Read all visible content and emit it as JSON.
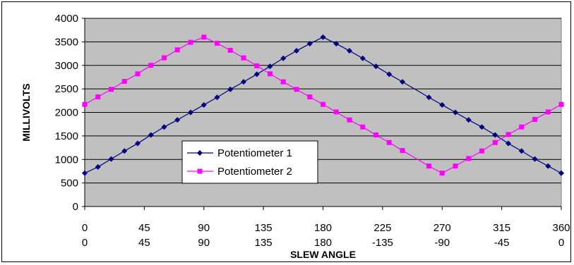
{
  "chart_data": {
    "type": "line",
    "xlabel": "SLEW ANGLE",
    "ylabel": "MILLIVOLTS",
    "x_ticks_row1": [
      "0",
      "45",
      "90",
      "135",
      "180",
      "225",
      "270",
      "315",
      "360"
    ],
    "x_ticks_row2": [
      "0",
      "45",
      "90",
      "135",
      "180",
      "-135",
      "-90",
      "-45",
      "0"
    ],
    "xlim": [
      0,
      360
    ],
    "ylim": [
      0,
      4000
    ],
    "y_ticks": [
      "0",
      "500",
      "1000",
      "1500",
      "2000",
      "2500",
      "3000",
      "3500",
      "4000"
    ],
    "grid": true,
    "legend_position": "lower-left",
    "colors": {
      "plot_background": "#c0c0c0",
      "gridline": "#000000"
    },
    "series": [
      {
        "name": "Potentiometer 1",
        "color": "#000080",
        "marker": "diamond",
        "x": [
          0,
          10,
          20,
          30,
          40,
          50,
          60,
          70,
          80,
          90,
          100,
          110,
          120,
          130,
          140,
          150,
          160,
          170,
          180,
          190,
          200,
          210,
          220,
          230,
          240,
          260,
          270,
          280,
          290,
          300,
          310,
          320,
          330,
          340,
          350,
          360
        ],
        "y": [
          710,
          840,
          1010,
          1180,
          1340,
          1520,
          1690,
          1840,
          2000,
          2160,
          2320,
          2490,
          2650,
          2810,
          2980,
          3150,
          3310,
          3460,
          3600,
          3460,
          3310,
          3150,
          2980,
          2810,
          2650,
          2320,
          2160,
          2000,
          1840,
          1690,
          1520,
          1340,
          1180,
          1010,
          860,
          710
        ]
      },
      {
        "name": "Potentiometer 2",
        "color": "#ff00ff",
        "marker": "square",
        "x": [
          0,
          10,
          20,
          30,
          40,
          50,
          60,
          70,
          80,
          90,
          100,
          110,
          120,
          130,
          140,
          150,
          160,
          170,
          180,
          190,
          200,
          210,
          220,
          230,
          240,
          260,
          270,
          280,
          290,
          300,
          310,
          320,
          330,
          340,
          350,
          360
        ],
        "y": [
          2170,
          2330,
          2490,
          2660,
          2820,
          3000,
          3160,
          3330,
          3490,
          3600,
          3470,
          3320,
          3160,
          2990,
          2820,
          2650,
          2490,
          2330,
          2170,
          2010,
          1840,
          1690,
          1520,
          1360,
          1190,
          860,
          710,
          860,
          1020,
          1180,
          1360,
          1530,
          1690,
          1850,
          2010,
          2170
        ]
      }
    ]
  }
}
